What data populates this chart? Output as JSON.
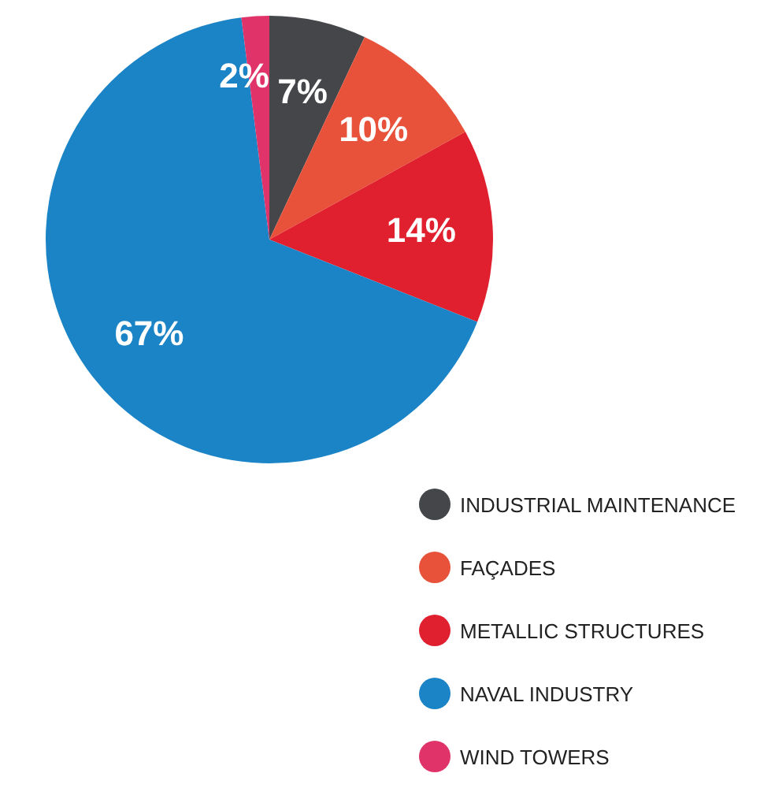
{
  "chart_data": {
    "type": "pie",
    "categories": [
      "INDUSTRIAL MAINTENANCE",
      "FAÇADES",
      "METALLIC STRUCTURES",
      "NAVAL INDUSTRY",
      "WIND TOWERS"
    ],
    "values": [
      7,
      10,
      14,
      67,
      2
    ],
    "colors": [
      "#444649",
      "#e8523a",
      "#e0202e",
      "#1b84c6",
      "#e0336a"
    ],
    "value_labels": [
      "7%",
      "10%",
      "14%",
      "67%",
      "2%"
    ],
    "legend": "bottom right"
  }
}
